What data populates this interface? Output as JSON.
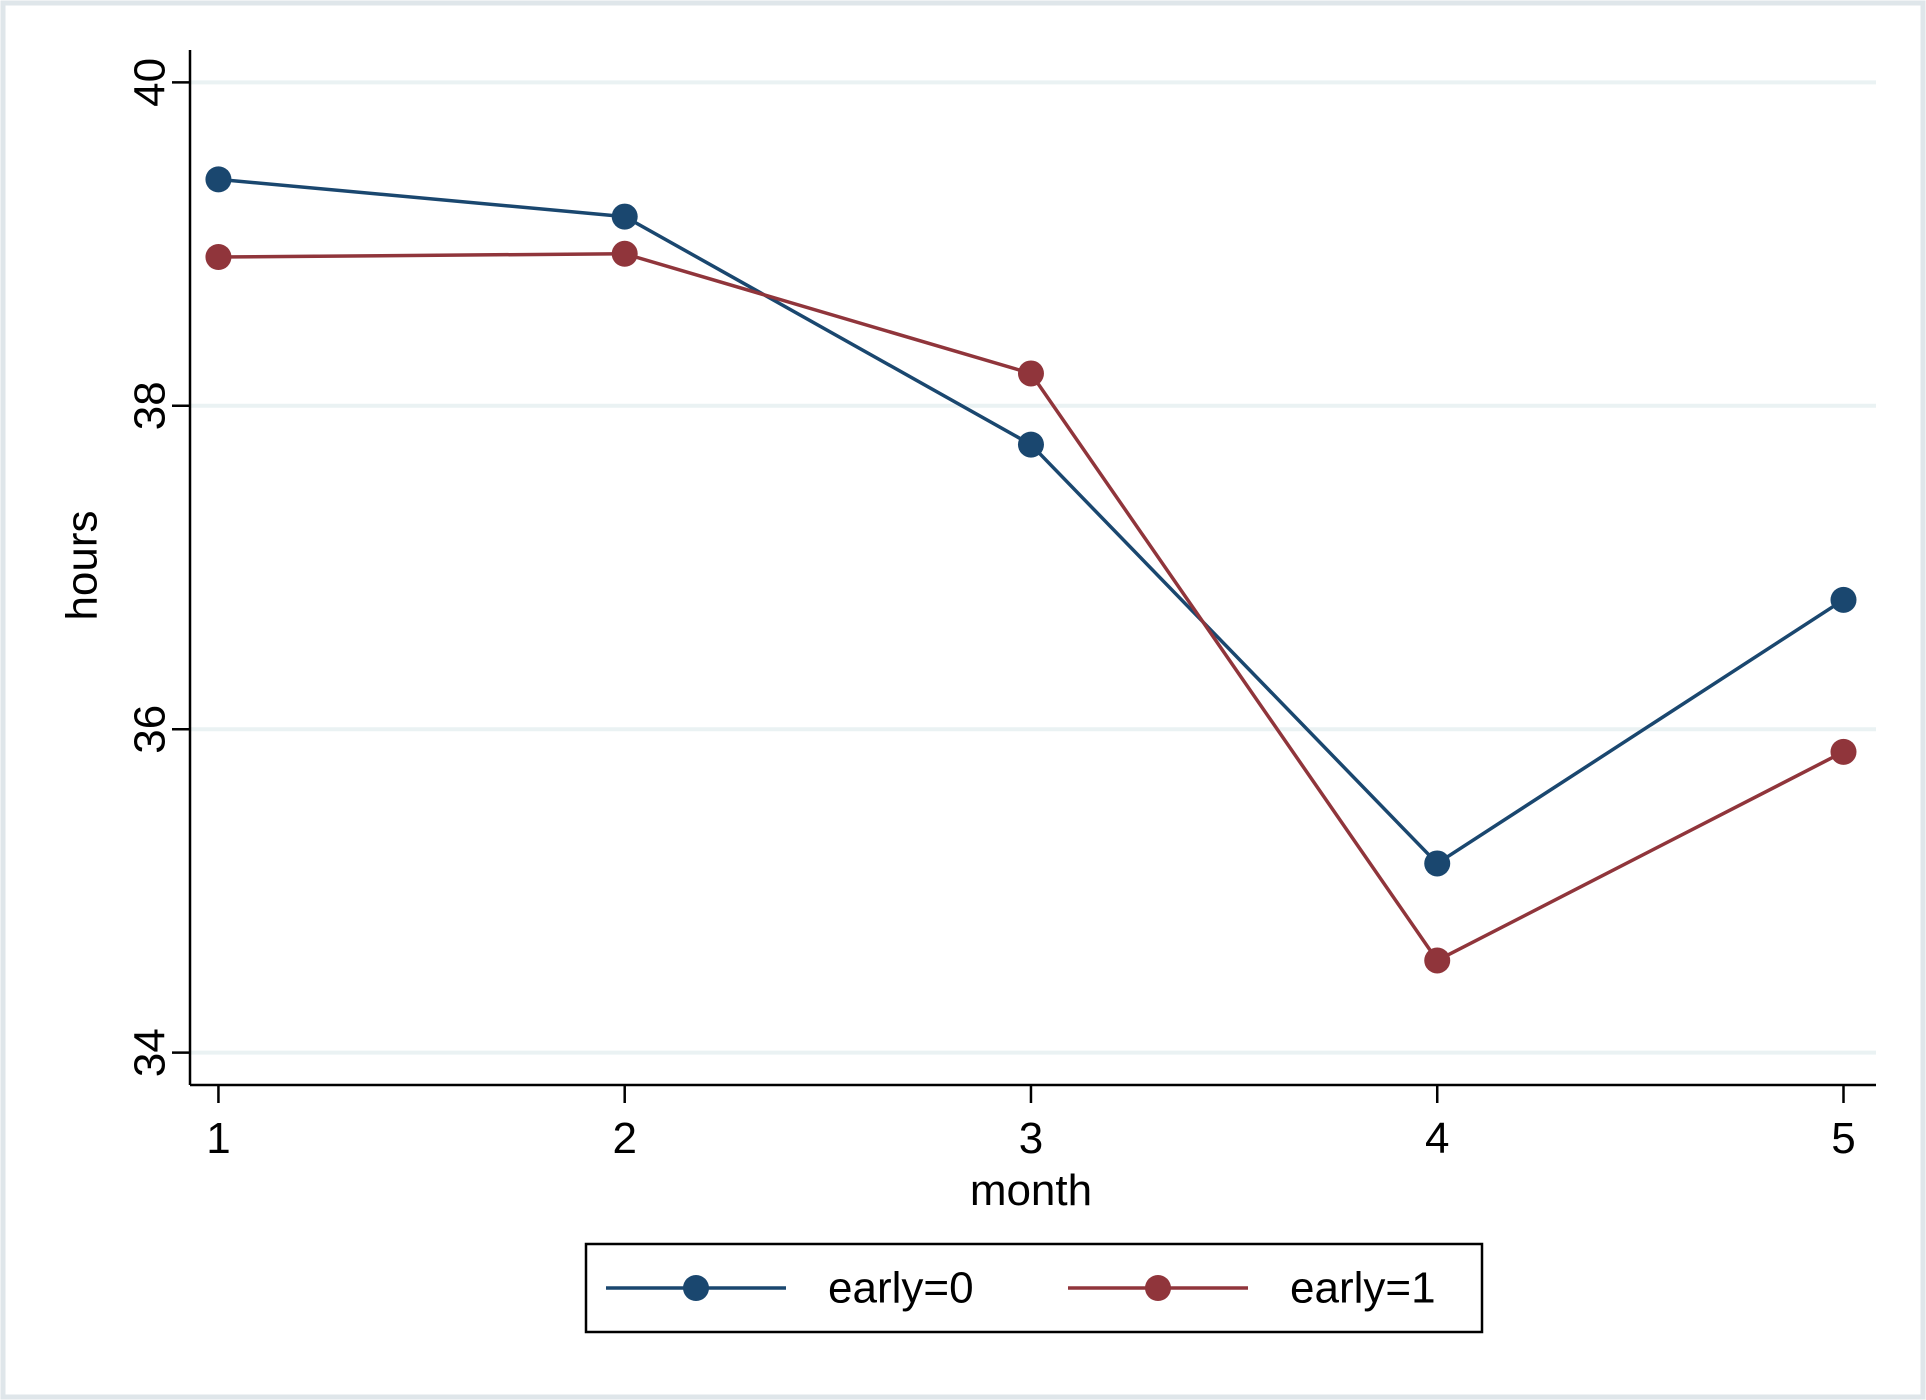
{
  "chart_data": {
    "type": "line",
    "title": "",
    "xlabel": "month",
    "ylabel": "hours",
    "x": [
      1,
      2,
      3,
      4,
      5
    ],
    "xticks": [
      "1",
      "2",
      "3",
      "4",
      "5"
    ],
    "yticks": [
      "34",
      "36",
      "38",
      "40"
    ],
    "ylim": [
      33.8,
      40.2
    ],
    "xlim": [
      0.93,
      5.08
    ],
    "grid": true,
    "legend_position": "bottom",
    "series": [
      {
        "name": "early=0",
        "color": "#1a476f",
        "values": [
          39.4,
          39.17,
          37.76,
          35.17,
          36.8
        ]
      },
      {
        "name": "early=1",
        "color": "#90353b",
        "values": [
          38.92,
          38.94,
          38.2,
          34.57,
          35.86
        ]
      }
    ]
  }
}
